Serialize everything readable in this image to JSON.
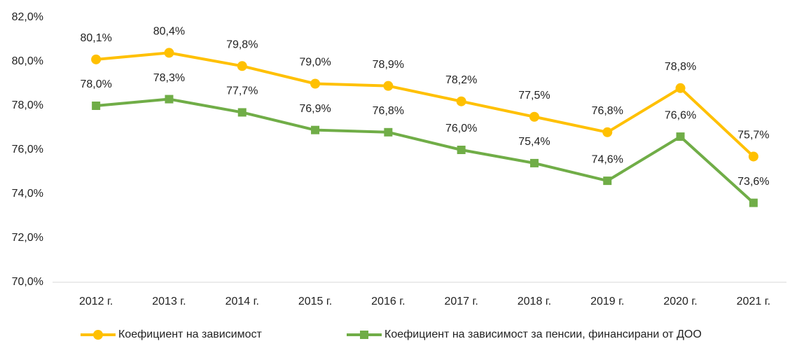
{
  "chart_data": {
    "type": "line",
    "categories": [
      "2012 г.",
      "2013 г.",
      "2014 г.",
      "2015 г.",
      "2016 г.",
      "2017 г.",
      "2018 г.",
      "2019 г.",
      "2020 г.",
      "2021 г."
    ],
    "series": [
      {
        "name": "Коефициент на зависимост",
        "color": "#FFC000",
        "marker": "circle",
        "values": [
          80.1,
          80.4,
          79.8,
          79.0,
          78.9,
          78.2,
          77.5,
          76.8,
          78.8,
          75.7
        ],
        "value_labels": [
          "80,1%",
          "80,4%",
          "79,8%",
          "79,0%",
          "78,9%",
          "78,2%",
          "77,5%",
          "76,8%",
          "78,8%",
          "75,7%"
        ]
      },
      {
        "name": "Коефициент на зависимост за пенсии, финансирани от ДОО",
        "color": "#70AD47",
        "marker": "square",
        "values": [
          78.0,
          78.3,
          77.7,
          76.9,
          76.8,
          76.0,
          75.4,
          74.6,
          76.6,
          73.6
        ],
        "value_labels": [
          "78,0%",
          "78,3%",
          "77,7%",
          "76,9%",
          "76,8%",
          "76,0%",
          "75,4%",
          "74,6%",
          "76,6%",
          "73,6%"
        ]
      }
    ],
    "ylim": [
      70,
      82
    ],
    "yticks": [
      {
        "value": 70,
        "label": "70,0%"
      },
      {
        "value": 72,
        "label": "72,0%"
      },
      {
        "value": 74,
        "label": "74,0%"
      },
      {
        "value": 76,
        "label": "76,0%"
      },
      {
        "value": 78,
        "label": "78,0%"
      },
      {
        "value": 80,
        "label": "80,0%"
      },
      {
        "value": 82,
        "label": "82,0%"
      }
    ],
    "grid": false,
    "legend": "bottom"
  }
}
